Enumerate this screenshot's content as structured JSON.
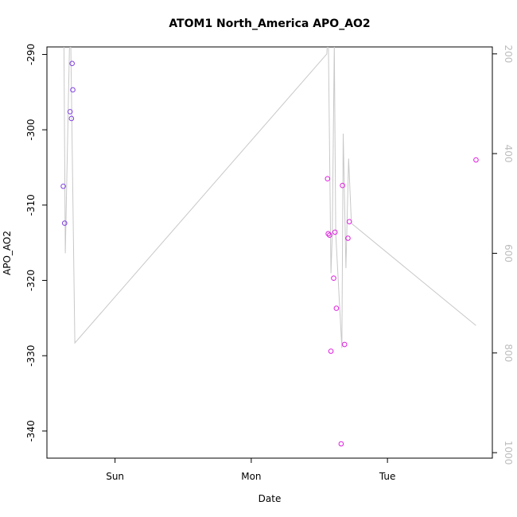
{
  "chart_data": {
    "type": "scatter",
    "title": "ATOM1 North_America APO_AO2",
    "xlabel": "Date",
    "ylabel": "APO_AO2",
    "x_ticks": [
      "Sun",
      "Mon",
      "Tue"
    ],
    "x_tick_days": [
      1,
      2,
      3
    ],
    "x_range_days": [
      0.5,
      3.77
    ],
    "ylim": [
      -343.6,
      -289.0
    ],
    "y_ticks": [
      -340,
      -330,
      -320,
      -310,
      -300,
      -290
    ],
    "y2_ticks": [
      200,
      400,
      600,
      800,
      1000
    ],
    "y2_range": [
      1011,
      186
    ],
    "grid": false,
    "series": [
      {
        "color": "#7f3fe0",
        "points": [
          {
            "x": 0.62,
            "y": -307.5
          },
          {
            "x": 0.63,
            "y": -312.4
          },
          {
            "x": 0.67,
            "y": -297.6
          },
          {
            "x": 0.68,
            "y": -298.5
          },
          {
            "x": 0.685,
            "y": -291.2
          },
          {
            "x": 0.69,
            "y": -294.7
          }
        ]
      },
      {
        "color": "#e020e0",
        "points": [
          {
            "x": 2.56,
            "y": -306.5
          },
          {
            "x": 2.565,
            "y": -313.8
          },
          {
            "x": 2.575,
            "y": -314.0
          },
          {
            "x": 2.585,
            "y": -329.4
          },
          {
            "x": 2.605,
            "y": -319.7
          },
          {
            "x": 2.615,
            "y": -313.6
          },
          {
            "x": 2.625,
            "y": -323.7
          },
          {
            "x": 2.66,
            "y": -341.7
          },
          {
            "x": 2.67,
            "y": -307.4
          },
          {
            "x": 2.685,
            "y": -328.5
          },
          {
            "x": 2.71,
            "y": -314.4
          },
          {
            "x": 2.72,
            "y": -312.2
          },
          {
            "x": 3.65,
            "y": -304.0
          }
        ]
      }
    ],
    "secondary_line": {
      "color": "#c8c8c8",
      "y_axis": "right",
      "points": [
        {
          "x": 0.625,
          "y": 180
        },
        {
          "x": 0.635,
          "y": 600
        },
        {
          "x": 0.665,
          "y": 190
        },
        {
          "x": 0.675,
          "y": 180
        },
        {
          "x": 0.705,
          "y": 780
        },
        {
          "x": 2.555,
          "y": 200
        },
        {
          "x": 2.565,
          "y": 140
        },
        {
          "x": 2.585,
          "y": 640
        },
        {
          "x": 2.595,
          "y": 560
        },
        {
          "x": 2.61,
          "y": 180
        },
        {
          "x": 2.62,
          "y": 560
        },
        {
          "x": 2.665,
          "y": 790
        },
        {
          "x": 2.675,
          "y": 360
        },
        {
          "x": 2.695,
          "y": 630
        },
        {
          "x": 2.715,
          "y": 410
        },
        {
          "x": 2.735,
          "y": 540
        },
        {
          "x": 3.65,
          "y": 745
        }
      ]
    }
  }
}
